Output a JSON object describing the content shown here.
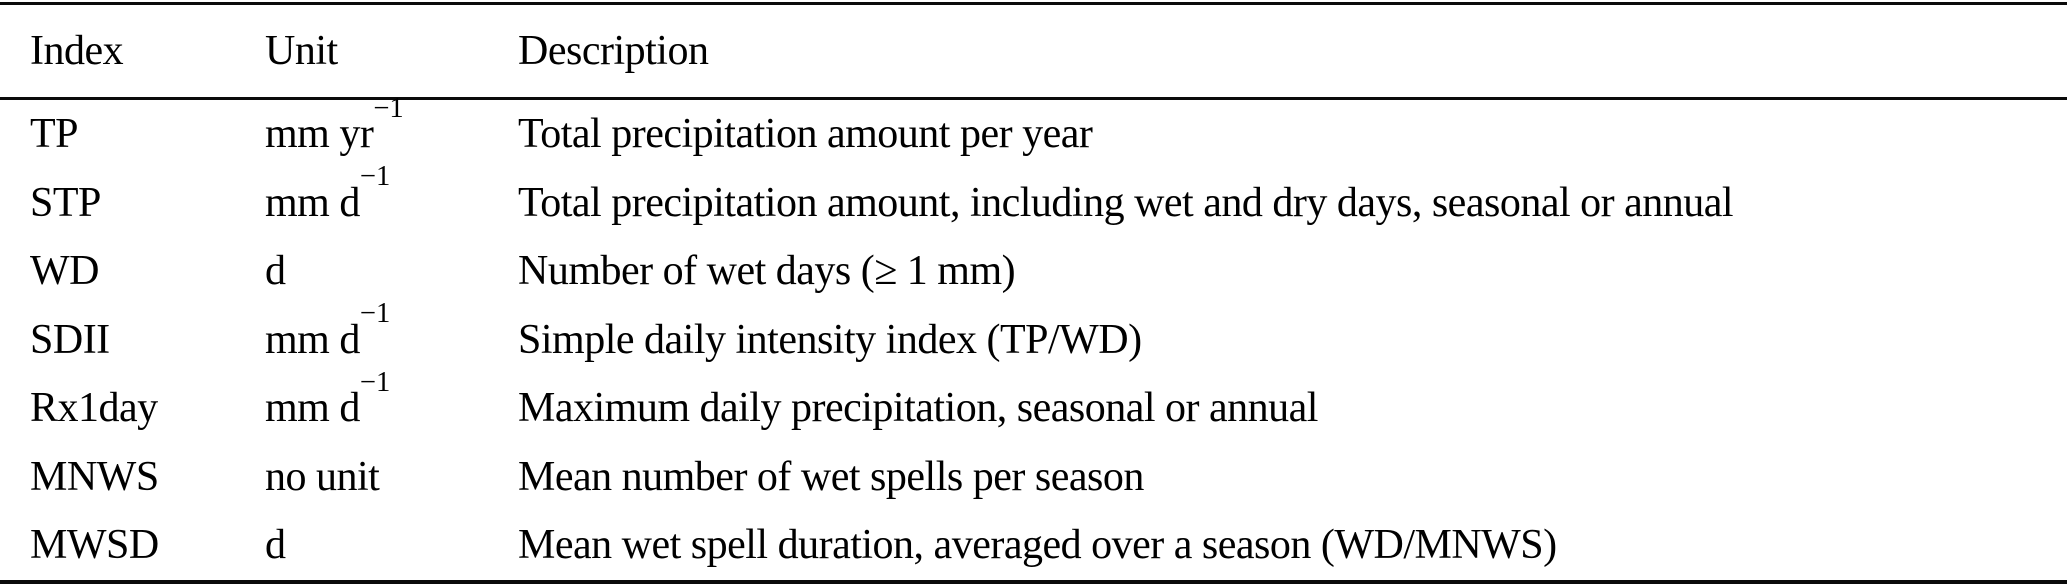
{
  "page": {
    "background_color": "#ffffff",
    "text_color": "#000000",
    "rule_color": "#0a0a0a"
  },
  "table": {
    "columns": [
      {
        "label": "Index"
      },
      {
        "label": "Unit"
      },
      {
        "label": "Description"
      }
    ],
    "rows": [
      {
        "index": "TP",
        "unit_base": "mm yr",
        "unit_sup": "−1",
        "description": "Total precipitation amount per year"
      },
      {
        "index": "STP",
        "unit_base": "mm d",
        "unit_sup": "−1",
        "description": "Total precipitation amount, including wet and dry days, seasonal or annual"
      },
      {
        "index": "WD",
        "unit_base": "d",
        "unit_sup": "",
        "description": "Number of wet days (≥ 1 mm)"
      },
      {
        "index": "SDII",
        "unit_base": "mm d",
        "unit_sup": "−1",
        "description": "Simple daily intensity index (TP/WD)"
      },
      {
        "index": "Rx1day",
        "unit_base": "mm d",
        "unit_sup": "−1",
        "description": "Maximum daily precipitation, seasonal or annual"
      },
      {
        "index": "MNWS",
        "unit_base": "no unit",
        "unit_sup": "",
        "description": "Mean number of wet spells per season"
      },
      {
        "index": "MWSD",
        "unit_base": "d",
        "unit_sup": "",
        "description": "Mean wet spell duration, averaged over a season (WD/MNWS)"
      }
    ]
  }
}
